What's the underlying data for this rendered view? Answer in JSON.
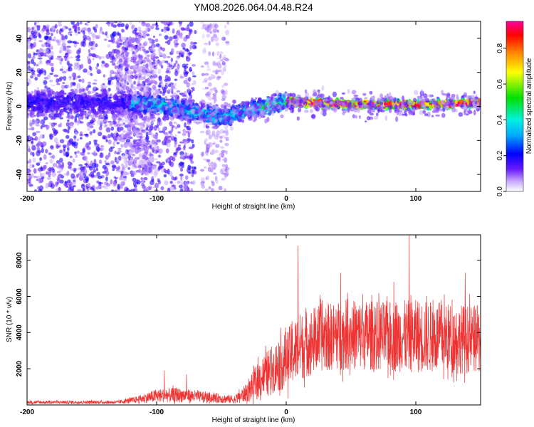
{
  "title": "YM08.2026.064.04.48.R24",
  "chart_data": [
    {
      "type": "heatmap",
      "title": "YM08.2026.064.04.48.R24",
      "xlabel": "Height of straight line (km)",
      "ylabel": "Frequency (Hz)",
      "xlim": [
        -200,
        150
      ],
      "ylim": [
        -50,
        50
      ],
      "xticks": [
        -200,
        -100,
        0,
        100
      ],
      "xtick_labels": [
        "-200",
        "-100",
        "0",
        "100"
      ],
      "yticks": [
        -40,
        -20,
        0,
        20,
        40
      ],
      "ytick_labels": [
        "-40",
        "-20",
        "0",
        "20",
        "40"
      ],
      "ridge": [
        {
          "x": -200,
          "f": 2
        },
        {
          "x": -150,
          "f": 2
        },
        {
          "x": -120,
          "f": 2
        },
        {
          "x": -100,
          "f": 1
        },
        {
          "x": -80,
          "f": -2
        },
        {
          "x": -60,
          "f": -5
        },
        {
          "x": -45,
          "f": -6
        },
        {
          "x": -30,
          "f": -2
        },
        {
          "x": -10,
          "f": 1
        },
        {
          "x": 0,
          "f": 3
        },
        {
          "x": 50,
          "f": 1
        },
        {
          "x": 100,
          "f": 1
        },
        {
          "x": 150,
          "f": 2
        }
      ],
      "colorbar": {
        "label": "Normalized spectral amplitude",
        "ticks": [
          0.0,
          0.2,
          0.4,
          0.6,
          0.8
        ],
        "tick_labels": [
          "0.0",
          "0.2",
          "0.4",
          "0.6",
          "0.8"
        ],
        "range": [
          0,
          0.95
        ]
      }
    },
    {
      "type": "line",
      "xlabel": "Height of straight line (km)",
      "ylabel": "SNR (10 * v/v)",
      "xlim": [
        -200,
        150
      ],
      "ylim": [
        0,
        9400
      ],
      "xticks": [
        -200,
        -100,
        0,
        100
      ],
      "xtick_labels": [
        "-200",
        "-100",
        "0",
        "100"
      ],
      "yticks": [
        2000,
        4000,
        6000,
        8000
      ],
      "ytick_labels": [
        "2000",
        "4000",
        "6000",
        "8000"
      ],
      "line_color": "#ee3333",
      "envelope": [
        {
          "x": -200,
          "mean": 150,
          "spread": 120
        },
        {
          "x": -130,
          "mean": 150,
          "spread": 120
        },
        {
          "x": -115,
          "mean": 300,
          "spread": 250
        },
        {
          "x": -100,
          "mean": 500,
          "spread": 500
        },
        {
          "x": -85,
          "mean": 550,
          "spread": 550
        },
        {
          "x": -65,
          "mean": 450,
          "spread": 400
        },
        {
          "x": -40,
          "mean": 300,
          "spread": 300
        },
        {
          "x": -30,
          "mean": 700,
          "spread": 700
        },
        {
          "x": -20,
          "mean": 1500,
          "spread": 1500
        },
        {
          "x": -10,
          "mean": 2000,
          "spread": 1800
        },
        {
          "x": 0,
          "mean": 2500,
          "spread": 2200
        },
        {
          "x": 10,
          "mean": 3200,
          "spread": 2500
        },
        {
          "x": 25,
          "mean": 3700,
          "spread": 2500
        },
        {
          "x": 50,
          "mean": 3900,
          "spread": 2600
        },
        {
          "x": 75,
          "mean": 3800,
          "spread": 2600
        },
        {
          "x": 100,
          "mean": 3800,
          "spread": 2700
        },
        {
          "x": 125,
          "mean": 3700,
          "spread": 2600
        },
        {
          "x": 150,
          "mean": 3600,
          "spread": 2500
        }
      ],
      "peaks": [
        {
          "x": -94,
          "y": 1900
        },
        {
          "x": -77,
          "y": 1700
        },
        {
          "x": 9,
          "y": 8800
        },
        {
          "x": 42,
          "y": 7300
        },
        {
          "x": 83,
          "y": 6800
        },
        {
          "x": 95,
          "y": 9400
        },
        {
          "x": 138,
          "y": 7300
        }
      ]
    }
  ]
}
